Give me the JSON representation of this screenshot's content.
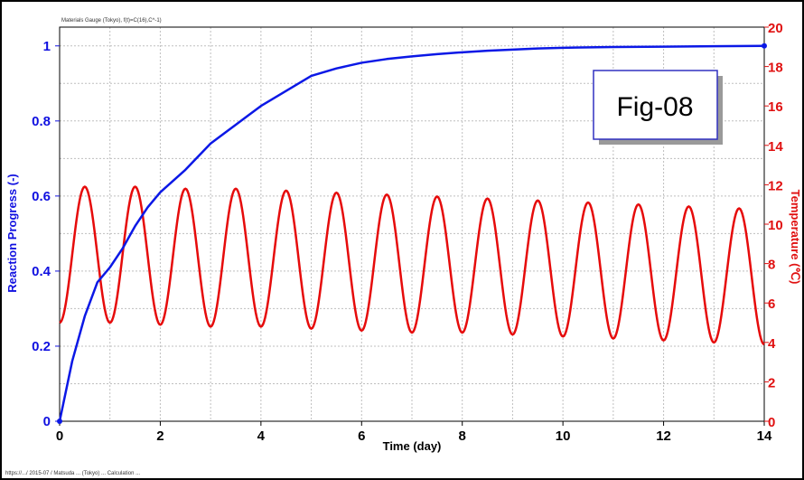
{
  "chart_data": {
    "type": "line",
    "caption_top": "Materials Gauge (Tokyo), f(t)=C(16),C^-1)",
    "caption_bottom": "https://.../ 2015-07 / Matsuda ... (Tokyo) ... Calculation ...",
    "figure_label": "Fig-08",
    "xlabel": "Time (day)",
    "ylabel_left": "Reaction Progress (-)",
    "ylabel_right": "Temperature (℃)",
    "xlim": [
      0,
      14
    ],
    "ylim_left": [
      0,
      1.05
    ],
    "ylim_right": [
      0,
      20
    ],
    "x_ticks": [
      "0",
      "2",
      "4",
      "6",
      "8",
      "10",
      "12",
      "14"
    ],
    "y_left_ticks": [
      "0",
      "0.2",
      "0.4",
      "0.6",
      "0.8",
      "1"
    ],
    "y_right_ticks": [
      "0",
      "2",
      "4",
      "6",
      "8",
      "10",
      "12",
      "14",
      "16",
      "18",
      "20"
    ],
    "grid": true,
    "colors": {
      "progress": "#0b18e6",
      "temperature": "#e60b0b",
      "grid": "#bfbfbf"
    },
    "series": [
      {
        "axis": "left",
        "x": [
          0,
          0.25,
          0.5,
          0.75,
          1.0,
          1.25,
          1.5,
          1.75,
          2.0,
          2.5,
          3.0,
          3.5,
          4.0,
          4.5,
          5.0,
          5.5,
          6.0,
          6.5,
          7.0,
          7.5,
          8.0,
          8.5,
          9.0,
          9.5,
          10.0,
          11.0,
          12.0,
          13.0,
          14.0
        ],
        "y": [
          0.0,
          0.16,
          0.28,
          0.37,
          0.41,
          0.46,
          0.52,
          0.57,
          0.61,
          0.67,
          0.74,
          0.79,
          0.84,
          0.88,
          0.92,
          0.94,
          0.955,
          0.965,
          0.972,
          0.978,
          0.983,
          0.987,
          0.99,
          0.993,
          0.995,
          0.997,
          0.998,
          0.999,
          1.0
        ]
      },
      {
        "axis": "right",
        "x": [
          0,
          0.5,
          1.0,
          1.5,
          2.0,
          2.5,
          3.0,
          3.5,
          4.0,
          4.5,
          5.0,
          5.5,
          6.0,
          6.5,
          7.0,
          7.5,
          8.0,
          8.5,
          9.0,
          9.5,
          10.0,
          10.5,
          11.0,
          11.5,
          12.0,
          12.5,
          13.0,
          13.5,
          14.0
        ],
        "y": [
          5.0,
          11.9,
          5.0,
          11.9,
          4.9,
          11.8,
          4.8,
          11.8,
          4.8,
          11.7,
          4.7,
          11.6,
          4.6,
          11.5,
          4.5,
          11.4,
          4.5,
          11.3,
          4.4,
          11.2,
          4.3,
          11.1,
          4.2,
          11.0,
          4.1,
          10.9,
          4.0,
          10.8,
          3.9
        ]
      }
    ]
  }
}
